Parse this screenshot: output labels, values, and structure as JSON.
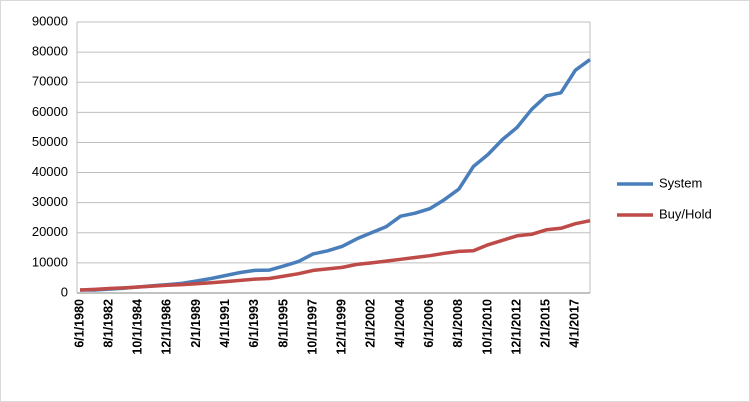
{
  "chart_data": {
    "type": "line",
    "categories": [
      "6/1/1980",
      null,
      "8/1/1982",
      null,
      "10/1/1984",
      null,
      "12/1/1986",
      null,
      "2/1/1989",
      null,
      "4/1/1991",
      null,
      "6/1/1993",
      null,
      "8/1/1995",
      null,
      "10/1/1997",
      null,
      "12/1/1999",
      null,
      "2/1/2002",
      null,
      "4/1/2004",
      null,
      "6/1/2006",
      null,
      "8/1/2008",
      null,
      "10/1/2010",
      null,
      "12/1/2012",
      null,
      "2/1/2015",
      null,
      "4/1/2017",
      null
    ],
    "series": [
      {
        "name": "System",
        "color": "#4a7ebb",
        "values": [
          1000,
          1000,
          1300,
          1600,
          2000,
          2400,
          2800,
          3200,
          4000,
          4800,
          5800,
          6800,
          7500,
          7600,
          9000,
          10500,
          13000,
          14000,
          15500,
          18000,
          20000,
          22000,
          25500,
          26500,
          28000,
          31000,
          34500,
          42000,
          46000,
          51000,
          55000,
          61000,
          65500,
          66500,
          74000,
          77500
        ]
      },
      {
        "name": "Buy/Hold",
        "color": "#be4b48",
        "values": [
          1000,
          1200,
          1500,
          1700,
          2000,
          2300,
          2600,
          2800,
          3100,
          3400,
          3800,
          4200,
          4600,
          4800,
          5600,
          6400,
          7500,
          8000,
          8500,
          9500,
          10000,
          10600,
          11200,
          11800,
          12400,
          13200,
          13800,
          14000,
          16000,
          17500,
          19000,
          19500,
          21000,
          21500,
          23000,
          24000
        ]
      }
    ],
    "ylim": [
      0,
      90000
    ],
    "yticks": [
      0,
      10000,
      20000,
      30000,
      40000,
      50000,
      60000,
      70000,
      80000,
      90000
    ],
    "grid": true,
    "legend": "right"
  }
}
